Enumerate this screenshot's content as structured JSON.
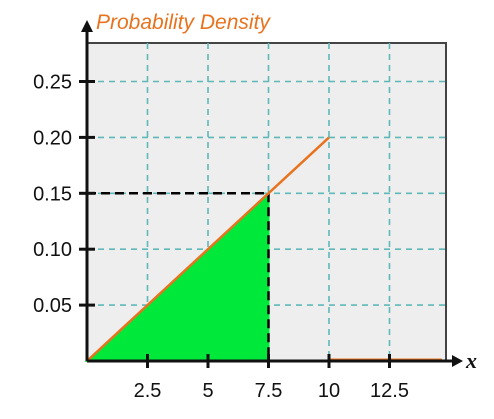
{
  "chart_data": {
    "type": "line",
    "title": "Probability Density",
    "xlabel": "x",
    "ylabel": "",
    "xlim": [
      0,
      14.5
    ],
    "ylim": [
      0,
      0.275
    ],
    "x_ticks": [
      2.5,
      5,
      7.5,
      10,
      12.5
    ],
    "x_tick_labels": [
      "2.5",
      "5",
      "7.5",
      "10",
      "12.5"
    ],
    "y_ticks": [
      0.05,
      0.1,
      0.15,
      0.2,
      0.25
    ],
    "y_tick_labels": [
      "0.05",
      "0.10",
      "0.15",
      "0.20",
      "0.25"
    ],
    "grid": true,
    "series": [
      {
        "x": [
          0,
          10,
          10,
          14.5
        ],
        "y": [
          0,
          0.2,
          0,
          0
        ]
      }
    ],
    "shaded_region": {
      "x_from": 0,
      "x_to": 7.5
    },
    "reference_point": {
      "x": 7.5,
      "y": 0.15
    },
    "colors": {
      "density_line": "#e8731f",
      "shaded_fill": "#00e83a",
      "grid": "#5fb8b8",
      "plot_background": "#eeeeee",
      "title": "#e8731f",
      "axes": "#111111"
    }
  }
}
